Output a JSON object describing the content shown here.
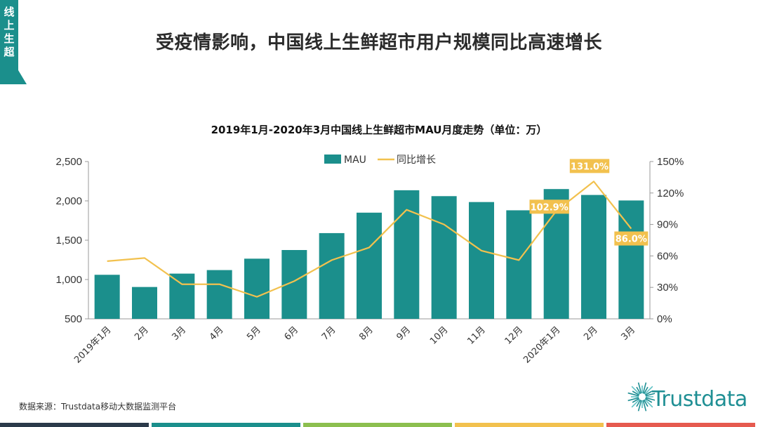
{
  "side_tag": {
    "text": [
      "线",
      "上",
      "生",
      "超"
    ],
    "color": "#1b8f8c"
  },
  "headline": "受疫情影响，中国线上生鲜超市用户规模同比高速增长",
  "source": "数据来源：Trustdata移动大数据监测平台",
  "logo": {
    "text": "Trustdata",
    "color": "#1f8f94"
  },
  "footer_colors": [
    "#2b3a4a",
    "#1b8f8c",
    "#8cbf4f",
    "#f2c14e",
    "#e65a4f"
  ],
  "chart_data": {
    "type": "bar+line",
    "title": "2019年1月-2020年3月中国线上生鲜超市MAU月度走势（单位：万）",
    "categories": [
      "2019年1月",
      "2月",
      "3月",
      "4月",
      "5月",
      "6月",
      "7月",
      "8月",
      "9月",
      "10月",
      "11月",
      "12月",
      "2020年1月",
      "2月",
      "3月"
    ],
    "series": [
      {
        "name": "MAU",
        "type": "bar",
        "axis": "left",
        "color": "#1b8f8c",
        "values": [
          1060,
          905,
          1075,
          1120,
          1265,
          1375,
          1590,
          1850,
          2135,
          2060,
          1985,
          1880,
          2150,
          2075,
          2005
        ]
      },
      {
        "name": "同比增长",
        "type": "line",
        "axis": "right",
        "color": "#f2c14e",
        "values": [
          55,
          58,
          33,
          33,
          21,
          36,
          56,
          68,
          104,
          90,
          65,
          56,
          102.9,
          131.0,
          86.0
        ]
      }
    ],
    "left_axis": {
      "min": 500,
      "max": 2500,
      "ticks": [
        "500",
        "1,000",
        "1,500",
        "2,000",
        "2,500"
      ]
    },
    "right_axis": {
      "min": 0,
      "max": 150,
      "ticks": [
        "0%",
        "30%",
        "60%",
        "90%",
        "120%",
        "150%"
      ]
    },
    "annotations": [
      {
        "index": 12,
        "label": "102.9%"
      },
      {
        "index": 13,
        "label": "131.0%"
      },
      {
        "index": 14,
        "label": "86.0%"
      }
    ],
    "legend_position": "top-center",
    "grid": false
  }
}
